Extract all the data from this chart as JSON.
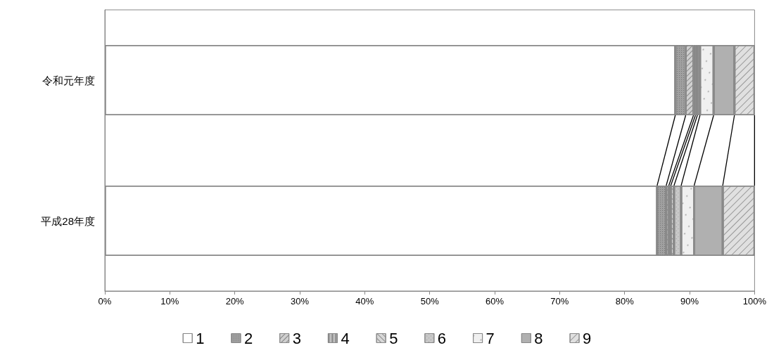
{
  "chart_data": {
    "type": "bar",
    "orientation": "horizontal",
    "stacked": true,
    "categories": [
      "令和元年度",
      "平成28年度"
    ],
    "series": [
      {
        "name": "1",
        "color": "#ffffff",
        "values": [
          87.8,
          85.0
        ]
      },
      {
        "name": "2",
        "color": "#a0a0a0",
        "values": [
          1.6,
          1.4
        ]
      },
      {
        "name": "3",
        "color": "#d0d0d0",
        "values": [
          1.2,
          0.4
        ]
      },
      {
        "name": "4",
        "color": "#c0c0c0",
        "values": [
          0.3,
          0.3
        ]
      },
      {
        "name": "5",
        "color": "#d8d8d8",
        "values": [
          0.3,
          0.5
        ]
      },
      {
        "name": "6",
        "color": "#c8c8c8",
        "values": [
          0.4,
          1.1
        ]
      },
      {
        "name": "7",
        "color": "#f0f0f0",
        "values": [
          2.1,
          2.0
        ]
      },
      {
        "name": "8",
        "color": "#b0b0b0",
        "values": [
          3.2,
          4.4
        ]
      },
      {
        "name": "9",
        "color": "#e0e0e0",
        "values": [
          3.1,
          4.9
        ]
      }
    ],
    "xlim": [
      0,
      100
    ],
    "xticks": [
      {
        "value": 0,
        "label": "0%"
      },
      {
        "value": 10,
        "label": "10%"
      },
      {
        "value": 20,
        "label": "20%"
      },
      {
        "value": 30,
        "label": "30%"
      },
      {
        "value": 40,
        "label": "40%"
      },
      {
        "value": 50,
        "label": "50%"
      },
      {
        "value": 60,
        "label": "60%"
      },
      {
        "value": 70,
        "label": "70%"
      },
      {
        "value": 80,
        "label": "80%"
      },
      {
        "value": 90,
        "label": "90%"
      },
      {
        "value": 100,
        "label": "100%"
      }
    ],
    "grid": false,
    "legend": "bottom"
  }
}
